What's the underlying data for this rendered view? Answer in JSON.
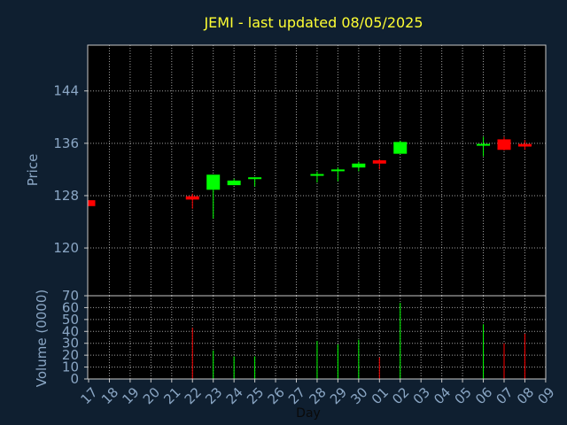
{
  "chart_data": {
    "type": "candlestick",
    "title": "JEMI - last updated 08/05/2025",
    "xlabel": "Day",
    "price_panel": {
      "ylabel": "Price",
      "yticks": [
        120,
        128,
        136,
        144
      ],
      "ylim": [
        112.7,
        151
      ]
    },
    "volume_panel": {
      "ylabel": "Volume (0000)",
      "yticks": [
        0,
        10,
        20,
        30,
        40,
        50,
        60,
        70
      ],
      "ylim": [
        0,
        70
      ]
    },
    "x_tick_labels": [
      "17",
      "18",
      "19",
      "20",
      "21",
      "22",
      "23",
      "24",
      "25",
      "26",
      "27",
      "28",
      "29",
      "30",
      "01",
      "02",
      "03",
      "04",
      "05",
      "06",
      "07",
      "08",
      "09"
    ],
    "candles": [
      {
        "day": "17",
        "open": 127.3,
        "close": 126.4,
        "high": 127.3,
        "low": 126.4,
        "volume": 0
      },
      {
        "day": "22",
        "open": 127.9,
        "close": 127.4,
        "high": 128.3,
        "low": 126.0,
        "volume": 43
      },
      {
        "day": "23",
        "open": 128.9,
        "close": 131.2,
        "high": 131.2,
        "low": 124.5,
        "volume": 24
      },
      {
        "day": "24",
        "open": 129.6,
        "close": 130.3,
        "high": 130.6,
        "low": 129.6,
        "volume": 19
      },
      {
        "day": "25",
        "open": 130.7,
        "close": 130.8,
        "high": 130.8,
        "low": 129.4,
        "volume": 19
      },
      {
        "day": "28",
        "open": 131.1,
        "close": 131.3,
        "high": 131.7,
        "low": 130.0,
        "volume": 32
      },
      {
        "day": "29",
        "open": 131.8,
        "close": 132.0,
        "high": 132.3,
        "low": 130.2,
        "volume": 29
      },
      {
        "day": "30",
        "open": 132.3,
        "close": 132.9,
        "high": 133.2,
        "low": 131.7,
        "volume": 33
      },
      {
        "day": "01",
        "open": 133.4,
        "close": 132.9,
        "high": 133.6,
        "low": 132.0,
        "volume": 18
      },
      {
        "day": "02",
        "open": 134.4,
        "close": 136.2,
        "high": 136.4,
        "low": 134.4,
        "volume": 64
      },
      {
        "day": "06",
        "open": 135.8,
        "close": 135.9,
        "high": 137.0,
        "low": 134.0,
        "volume": 46
      },
      {
        "day": "07",
        "open": 136.6,
        "close": 135.0,
        "high": 137.0,
        "low": 134.9,
        "volume": 30
      },
      {
        "day": "08",
        "open": 135.9,
        "close": 135.5,
        "high": 136.5,
        "low": 135.0,
        "volume": 38
      }
    ],
    "grid": true,
    "colors": {
      "background": "#0f1f30",
      "plot_background": "#000000",
      "up": "#00ff00",
      "down": "#ff0000",
      "grid": "#e6e6e6",
      "frame": "#c8c8c8",
      "title": "#ffff33",
      "labels": "#8aa6c4"
    }
  }
}
